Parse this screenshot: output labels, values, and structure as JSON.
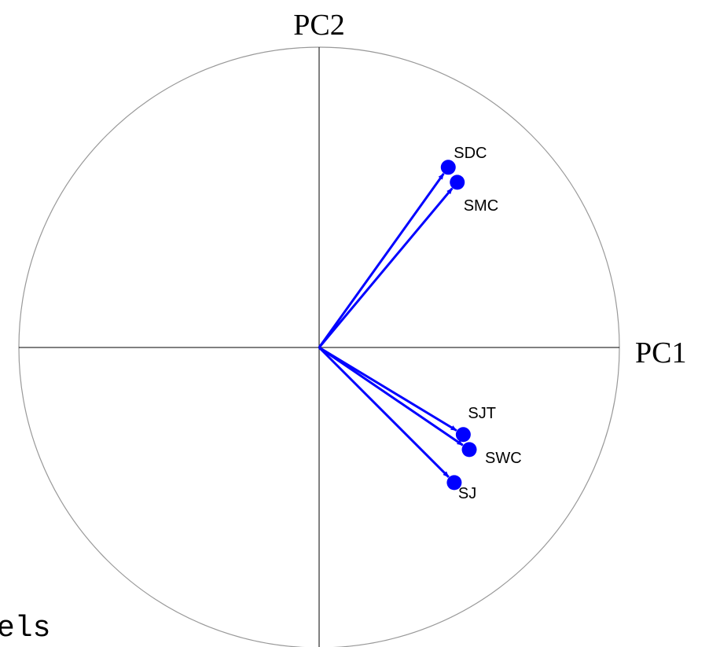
{
  "chart_data": {
    "type": "scatter",
    "subtype": "pca-correlation-circle",
    "title": "",
    "xlabel": "PC1",
    "ylabel": "PC2",
    "xlim": [
      -1,
      1
    ],
    "ylim": [
      -1,
      1
    ],
    "grid": false,
    "legend": "none",
    "unit_circle": true,
    "arrow_color": "#0000ff",
    "circle_color": "#999999",
    "points": [
      {
        "label": "SDC",
        "x": 0.43,
        "y": 0.6
      },
      {
        "label": "SMC",
        "x": 0.46,
        "y": 0.55
      },
      {
        "label": "SJT",
        "x": 0.48,
        "y": -0.29
      },
      {
        "label": "SWC",
        "x": 0.5,
        "y": -0.34
      },
      {
        "label": "SJ",
        "x": 0.45,
        "y": -0.45
      }
    ]
  },
  "fragment_text": "els"
}
